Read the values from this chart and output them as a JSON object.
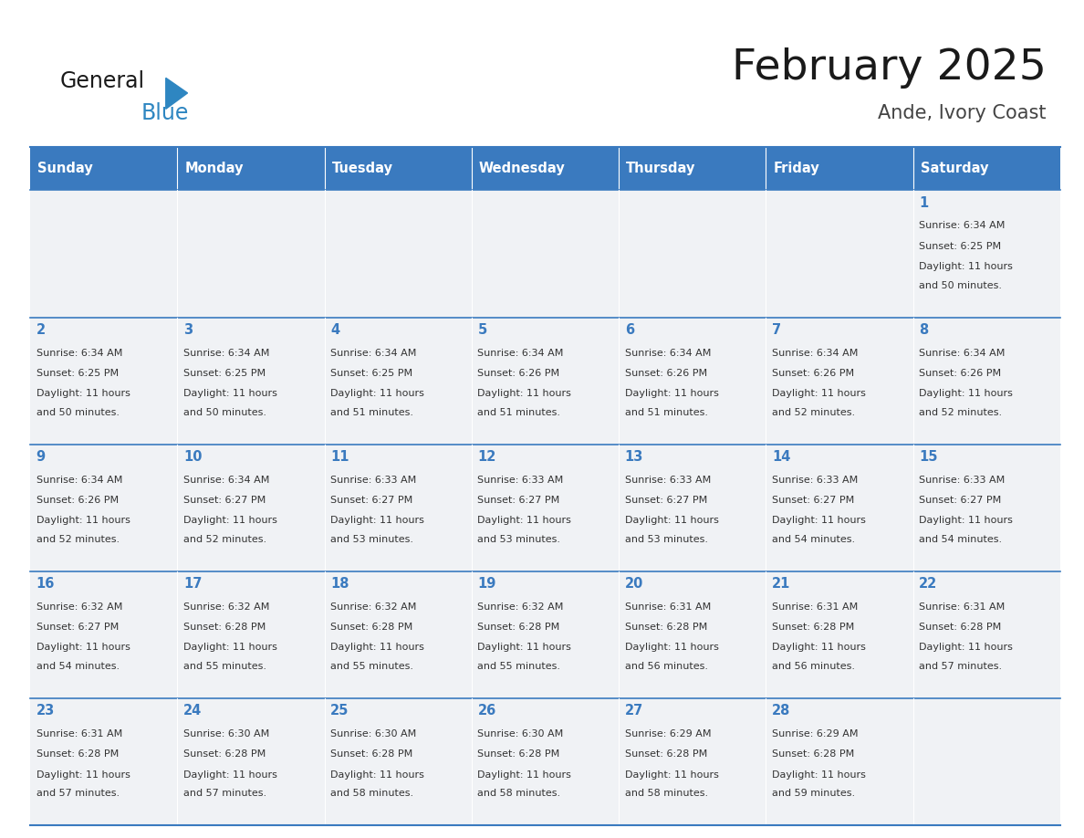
{
  "title": "February 2025",
  "subtitle": "Ande, Ivory Coast",
  "days_of_week": [
    "Sunday",
    "Monday",
    "Tuesday",
    "Wednesday",
    "Thursday",
    "Friday",
    "Saturday"
  ],
  "header_bg": "#3a7abf",
  "header_text_color": "#ffffff",
  "cell_bg": "#f0f2f5",
  "row_line_color": "#3a7abf",
  "title_color": "#1a1a1a",
  "subtitle_color": "#444444",
  "day_number_color": "#3a7abf",
  "cell_text_color": "#333333",
  "logo_general_color": "#1a1a1a",
  "logo_blue_color": "#2e86c1",
  "calendar_data": [
    [
      null,
      null,
      null,
      null,
      null,
      null,
      {
        "day": 1,
        "sunrise": "6:34 AM",
        "sunset": "6:25 PM",
        "daylight_l1": "Daylight: 11 hours",
        "daylight_l2": "and 50 minutes."
      }
    ],
    [
      {
        "day": 2,
        "sunrise": "6:34 AM",
        "sunset": "6:25 PM",
        "daylight_l1": "Daylight: 11 hours",
        "daylight_l2": "and 50 minutes."
      },
      {
        "day": 3,
        "sunrise": "6:34 AM",
        "sunset": "6:25 PM",
        "daylight_l1": "Daylight: 11 hours",
        "daylight_l2": "and 50 minutes."
      },
      {
        "day": 4,
        "sunrise": "6:34 AM",
        "sunset": "6:25 PM",
        "daylight_l1": "Daylight: 11 hours",
        "daylight_l2": "and 51 minutes."
      },
      {
        "day": 5,
        "sunrise": "6:34 AM",
        "sunset": "6:26 PM",
        "daylight_l1": "Daylight: 11 hours",
        "daylight_l2": "and 51 minutes."
      },
      {
        "day": 6,
        "sunrise": "6:34 AM",
        "sunset": "6:26 PM",
        "daylight_l1": "Daylight: 11 hours",
        "daylight_l2": "and 51 minutes."
      },
      {
        "day": 7,
        "sunrise": "6:34 AM",
        "sunset": "6:26 PM",
        "daylight_l1": "Daylight: 11 hours",
        "daylight_l2": "and 52 minutes."
      },
      {
        "day": 8,
        "sunrise": "6:34 AM",
        "sunset": "6:26 PM",
        "daylight_l1": "Daylight: 11 hours",
        "daylight_l2": "and 52 minutes."
      }
    ],
    [
      {
        "day": 9,
        "sunrise": "6:34 AM",
        "sunset": "6:26 PM",
        "daylight_l1": "Daylight: 11 hours",
        "daylight_l2": "and 52 minutes."
      },
      {
        "day": 10,
        "sunrise": "6:34 AM",
        "sunset": "6:27 PM",
        "daylight_l1": "Daylight: 11 hours",
        "daylight_l2": "and 52 minutes."
      },
      {
        "day": 11,
        "sunrise": "6:33 AM",
        "sunset": "6:27 PM",
        "daylight_l1": "Daylight: 11 hours",
        "daylight_l2": "and 53 minutes."
      },
      {
        "day": 12,
        "sunrise": "6:33 AM",
        "sunset": "6:27 PM",
        "daylight_l1": "Daylight: 11 hours",
        "daylight_l2": "and 53 minutes."
      },
      {
        "day": 13,
        "sunrise": "6:33 AM",
        "sunset": "6:27 PM",
        "daylight_l1": "Daylight: 11 hours",
        "daylight_l2": "and 53 minutes."
      },
      {
        "day": 14,
        "sunrise": "6:33 AM",
        "sunset": "6:27 PM",
        "daylight_l1": "Daylight: 11 hours",
        "daylight_l2": "and 54 minutes."
      },
      {
        "day": 15,
        "sunrise": "6:33 AM",
        "sunset": "6:27 PM",
        "daylight_l1": "Daylight: 11 hours",
        "daylight_l2": "and 54 minutes."
      }
    ],
    [
      {
        "day": 16,
        "sunrise": "6:32 AM",
        "sunset": "6:27 PM",
        "daylight_l1": "Daylight: 11 hours",
        "daylight_l2": "and 54 minutes."
      },
      {
        "day": 17,
        "sunrise": "6:32 AM",
        "sunset": "6:28 PM",
        "daylight_l1": "Daylight: 11 hours",
        "daylight_l2": "and 55 minutes."
      },
      {
        "day": 18,
        "sunrise": "6:32 AM",
        "sunset": "6:28 PM",
        "daylight_l1": "Daylight: 11 hours",
        "daylight_l2": "and 55 minutes."
      },
      {
        "day": 19,
        "sunrise": "6:32 AM",
        "sunset": "6:28 PM",
        "daylight_l1": "Daylight: 11 hours",
        "daylight_l2": "and 55 minutes."
      },
      {
        "day": 20,
        "sunrise": "6:31 AM",
        "sunset": "6:28 PM",
        "daylight_l1": "Daylight: 11 hours",
        "daylight_l2": "and 56 minutes."
      },
      {
        "day": 21,
        "sunrise": "6:31 AM",
        "sunset": "6:28 PM",
        "daylight_l1": "Daylight: 11 hours",
        "daylight_l2": "and 56 minutes."
      },
      {
        "day": 22,
        "sunrise": "6:31 AM",
        "sunset": "6:28 PM",
        "daylight_l1": "Daylight: 11 hours",
        "daylight_l2": "and 57 minutes."
      }
    ],
    [
      {
        "day": 23,
        "sunrise": "6:31 AM",
        "sunset": "6:28 PM",
        "daylight_l1": "Daylight: 11 hours",
        "daylight_l2": "and 57 minutes."
      },
      {
        "day": 24,
        "sunrise": "6:30 AM",
        "sunset": "6:28 PM",
        "daylight_l1": "Daylight: 11 hours",
        "daylight_l2": "and 57 minutes."
      },
      {
        "day": 25,
        "sunrise": "6:30 AM",
        "sunset": "6:28 PM",
        "daylight_l1": "Daylight: 11 hours",
        "daylight_l2": "and 58 minutes."
      },
      {
        "day": 26,
        "sunrise": "6:30 AM",
        "sunset": "6:28 PM",
        "daylight_l1": "Daylight: 11 hours",
        "daylight_l2": "and 58 minutes."
      },
      {
        "day": 27,
        "sunrise": "6:29 AM",
        "sunset": "6:28 PM",
        "daylight_l1": "Daylight: 11 hours",
        "daylight_l2": "and 58 minutes."
      },
      {
        "day": 28,
        "sunrise": "6:29 AM",
        "sunset": "6:28 PM",
        "daylight_l1": "Daylight: 11 hours",
        "daylight_l2": "and 59 minutes."
      },
      null
    ]
  ]
}
